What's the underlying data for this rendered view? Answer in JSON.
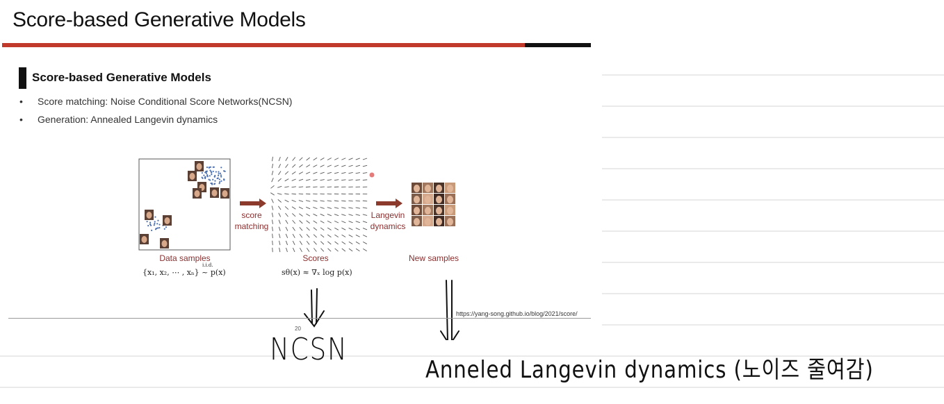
{
  "slide": {
    "title": "Score-based Generative Models",
    "section_title": "Score-based Generative Models",
    "bullets": [
      "Score matching: Noise Conditional Score Networks(NCSN)",
      "Generation: Annealed Langevin dynamics"
    ],
    "figure": {
      "data_label": "Data samples",
      "data_math": "{x₁, x₂, ⋯ , xₙ} ~ p(x)",
      "data_math_sup": "i.i.d.",
      "arrow1_label_line1": "score",
      "arrow1_label_line2": "matching",
      "scores_label": "Scores",
      "scores_math": "sθ(x) ≈ ∇ₓ log p(x)",
      "arrow2_label_line1": "Langevin",
      "arrow2_label_line2": "dynamics",
      "new_label": "New samples"
    },
    "source_url": "https://yang-song.github.io/blog/2021/score/",
    "page_number": "20"
  },
  "handwriting": {
    "left_note": "NCSN",
    "right_note": "Anneled Langevin dynamics (노이즈 줄여감)"
  },
  "colors": {
    "accent_red": "#c0392b",
    "figure_text": "#8b2e2e",
    "arrow_brown": "#8b3a2b",
    "scatter_blue": "#4a6fb0"
  }
}
